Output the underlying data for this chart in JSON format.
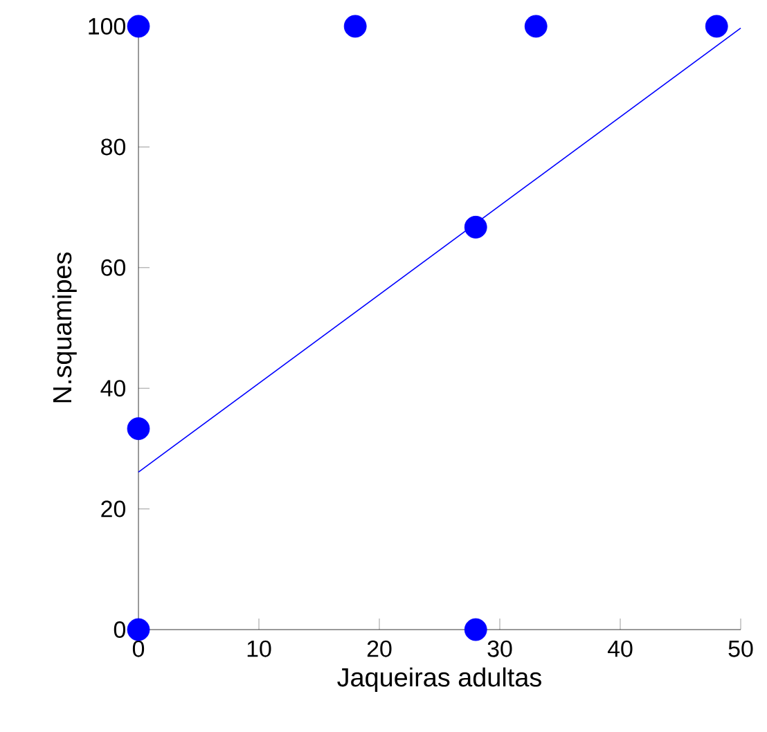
{
  "chart_data": {
    "type": "scatter",
    "xlabel": "Jaqueiras adultas",
    "ylabel": "N.squamipes",
    "xlim": [
      0,
      50
    ],
    "ylim": [
      0,
      100
    ],
    "xticks": [
      0,
      10,
      20,
      30,
      40,
      50
    ],
    "yticks": [
      0,
      20,
      40,
      60,
      80,
      100
    ],
    "grid": false,
    "series": [
      {
        "color": "#0000ff",
        "marker": "circle",
        "x": [
          0,
          18,
          33,
          48,
          28,
          0,
          0,
          28
        ],
        "values": [
          100,
          100,
          100,
          100,
          66.7,
          33.3,
          0,
          0
        ]
      },
      {
        "type": "line",
        "color": "#0000ff",
        "marker": "none",
        "line_style": "solid",
        "x": [
          0,
          50
        ],
        "values": [
          26.1,
          99.7
        ]
      }
    ]
  }
}
